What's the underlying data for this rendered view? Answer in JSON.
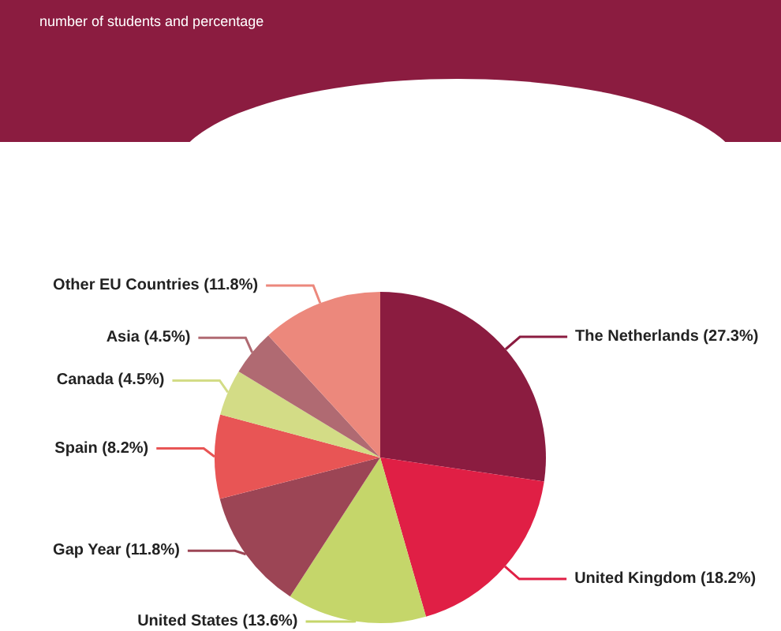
{
  "chart_data": {
    "type": "pie",
    "subtitle": "number of students and percentage",
    "categories": [
      "The Netherlands",
      "United Kingdom",
      "United States",
      "Gap Year",
      "Spain",
      "Canada",
      "Asia",
      "Other EU Countries"
    ],
    "values": [
      27.3,
      18.2,
      13.6,
      11.8,
      8.2,
      4.5,
      4.5,
      11.8
    ],
    "value_labels": [
      "(27.3%)",
      "(18.2%)",
      "(13.6%)",
      "(11.8%)",
      "(8.2%)",
      "(4.5%)",
      "(4.5%)",
      "(11.8%)"
    ],
    "colors": [
      "#8b1c40",
      "#e01f45",
      "#c5d66a",
      "#9c4555",
      "#e85555",
      "#d3dc86",
      "#b06a72",
      "#ec887c"
    ],
    "legend": false
  }
}
